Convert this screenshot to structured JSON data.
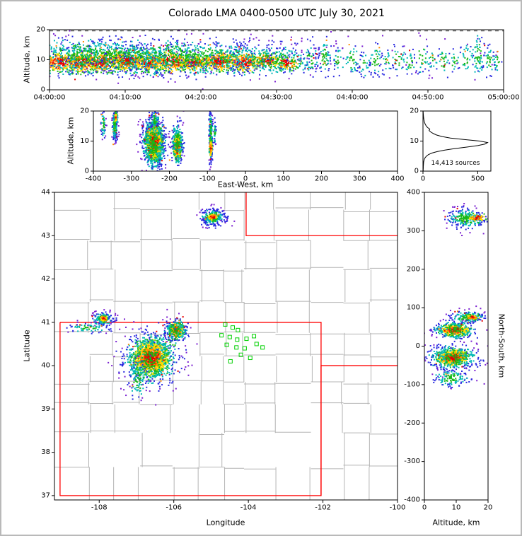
{
  "title": "Colorado LMA 0400-0500 UTC July 30, 2021",
  "labels": {
    "altitude_top": "Altitude, km",
    "altitude_ew": "Altitude, km",
    "east_west": "East-West, km",
    "latitude": "Latitude",
    "longitude": "Longitude",
    "north_south": "North-South, km",
    "altitude_ns": "Altitude, km",
    "sources": "14,413 sources"
  },
  "colors": {
    "hot_palette": [
      "#e60000",
      "#ff8c00",
      "#ffe000",
      "#22bb22",
      "#00b8b8",
      "#2828e0",
      "#7a1fd1"
    ],
    "cool_palette": [
      "#17b817",
      "#00b8b8",
      "#2828e0",
      "#7a1fd1"
    ],
    "county_line": "#b4b4b4",
    "state_border": "#ff0000",
    "station_marker": "#00d000",
    "curve": "#000000",
    "axis": "#000000"
  },
  "chart_data": [
    {
      "id": "time_height",
      "type": "scatter",
      "xlabel": "",
      "ylabel": "Altitude, km",
      "xlim": [
        0,
        60
      ],
      "ylim": [
        0,
        20
      ],
      "xticks": [
        {
          "v": 0,
          "label": "04:00:00"
        },
        {
          "v": 10,
          "label": "04:10:00"
        },
        {
          "v": 20,
          "label": "04:20:00"
        },
        {
          "v": 30,
          "label": "04:30:00"
        },
        {
          "v": 40,
          "label": "04:40:00"
        },
        {
          "v": 50,
          "label": "04:50:00"
        },
        {
          "v": 60,
          "label": "05:00:00"
        }
      ],
      "yticks": [
        0,
        10,
        20
      ],
      "dashed_reference_altitude_km": 19.6,
      "clusters": [
        [
          1.5,
          9.2,
          1.4,
          1.7,
          280,
          "hot"
        ],
        [
          4.2,
          9.0,
          1.2,
          1.8,
          300,
          "hot"
        ],
        [
          7.0,
          9.3,
          1.5,
          1.9,
          340,
          "hot"
        ],
        [
          10.5,
          9.6,
          1.4,
          1.9,
          320,
          "hot"
        ],
        [
          13.2,
          9.0,
          1.2,
          1.6,
          260,
          "hot"
        ],
        [
          16.2,
          9.4,
          1.5,
          1.8,
          300,
          "hot"
        ],
        [
          19.0,
          9.0,
          1.1,
          1.5,
          220,
          "hot"
        ],
        [
          22.4,
          9.5,
          1.4,
          1.8,
          300,
          "hot"
        ],
        [
          25.8,
          9.2,
          1.3,
          1.7,
          270,
          "hot"
        ],
        [
          28.8,
          9.6,
          1.0,
          1.4,
          160,
          "hot"
        ],
        [
          31.3,
          9.0,
          0.9,
          1.3,
          120,
          "hot"
        ],
        [
          7,
          10.5,
          6.0,
          3.0,
          650,
          "cool"
        ],
        [
          19,
          10.5,
          6.0,
          3.0,
          600,
          "cool"
        ],
        [
          29,
          10,
          3.5,
          2.6,
          260,
          "cool"
        ],
        [
          14,
          12.5,
          10,
          2.8,
          280,
          "cool"
        ],
        [
          5,
          13.5,
          4,
          2.2,
          120,
          "cool"
        ],
        [
          34.5,
          10,
          0.5,
          3.0,
          45,
          "cool"
        ],
        [
          36.3,
          10.5,
          0.5,
          3.5,
          60,
          "cool"
        ],
        [
          38.2,
          9.5,
          0.4,
          2.5,
          30,
          "cool"
        ],
        [
          40.0,
          10,
          0.5,
          3,
          42,
          "cool"
        ],
        [
          41.6,
          9,
          0.4,
          2.5,
          28,
          "cool"
        ],
        [
          43.1,
          10,
          0.5,
          3,
          48,
          "cool"
        ],
        [
          44.6,
          9.5,
          0.4,
          2,
          22,
          "cool"
        ],
        [
          46.1,
          10,
          0.5,
          3,
          38,
          "cool"
        ],
        [
          47.6,
          9.0,
          0.4,
          2.2,
          26,
          "cool"
        ],
        [
          49.2,
          10.5,
          0.5,
          3,
          34,
          "cool"
        ],
        [
          50.6,
          9.5,
          0.4,
          2,
          22,
          "cool"
        ],
        [
          52.1,
          10,
          0.5,
          2.6,
          30,
          "cool"
        ],
        [
          53.6,
          9.5,
          0.4,
          2,
          18,
          "cool"
        ],
        [
          55.1,
          10.5,
          0.5,
          3,
          30,
          "cool"
        ],
        [
          56.6,
          11.5,
          0.5,
          3.8,
          70,
          "cool"
        ],
        [
          58.1,
          10,
          0.4,
          2.6,
          36,
          "cool"
        ],
        [
          59.2,
          9.5,
          0.3,
          2,
          20,
          "cool"
        ]
      ]
    },
    {
      "id": "ew_height",
      "type": "scatter",
      "xlabel": "East-West, km",
      "ylabel": "Altitude, km",
      "xlim": [
        -400,
        400
      ],
      "ylim": [
        0,
        20
      ],
      "xticks": [
        -400,
        -300,
        -200,
        -100,
        0,
        100,
        200,
        300,
        400
      ],
      "yticks": [
        0,
        10,
        20
      ],
      "clusters": [
        [
          -374,
          15.5,
          3,
          2.2,
          55,
          "cool"
        ],
        [
          -343,
          15.5,
          3.5,
          2.8,
          150,
          "cool"
        ],
        [
          -341,
          17.8,
          2,
          0.9,
          45,
          "hot"
        ],
        [
          -240,
          9.5,
          11,
          3.1,
          1500,
          "hot"
        ],
        [
          -240,
          9.2,
          16,
          5.0,
          430,
          "cool"
        ],
        [
          -238,
          17.0,
          6,
          1.6,
          70,
          "cool"
        ],
        [
          -179,
          8.0,
          5.5,
          2.2,
          430,
          "hot"
        ],
        [
          -179,
          9.5,
          8,
          3.8,
          150,
          "cool"
        ],
        [
          -91,
          12,
          2.4,
          4.8,
          210,
          "cool"
        ],
        [
          -91,
          7.6,
          2.0,
          1.5,
          90,
          "hot"
        ],
        [
          -80,
          13,
          1.5,
          2.0,
          30,
          "cool"
        ]
      ]
    },
    {
      "id": "alt_histogram",
      "type": "line",
      "annotation": "14,413 sources",
      "xlim": [
        0,
        620
      ],
      "ylim": [
        0,
        20
      ],
      "xticks": [
        0,
        500
      ],
      "yticks": [
        0,
        10,
        20
      ],
      "profile_alt_count": [
        [
          0,
          2
        ],
        [
          0.5,
          2
        ],
        [
          1,
          3
        ],
        [
          1.5,
          3
        ],
        [
          2,
          4
        ],
        [
          2.5,
          5
        ],
        [
          3,
          6
        ],
        [
          3.5,
          9
        ],
        [
          4,
          13
        ],
        [
          4.5,
          20
        ],
        [
          5,
          32
        ],
        [
          5.5,
          50
        ],
        [
          6,
          80
        ],
        [
          6.5,
          130
        ],
        [
          7,
          200
        ],
        [
          7.5,
          290
        ],
        [
          8,
          400
        ],
        [
          8.5,
          500
        ],
        [
          9,
          565
        ],
        [
          9.5,
          590
        ],
        [
          10,
          520
        ],
        [
          10.5,
          380
        ],
        [
          11,
          250
        ],
        [
          11.5,
          175
        ],
        [
          12,
          125
        ],
        [
          12.5,
          95
        ],
        [
          13,
          72
        ],
        [
          13.5,
          56
        ],
        [
          14,
          62
        ],
        [
          14.5,
          42
        ],
        [
          15,
          30
        ],
        [
          15.5,
          22
        ],
        [
          16,
          16
        ],
        [
          16.5,
          12
        ],
        [
          17,
          9
        ],
        [
          17.5,
          7
        ],
        [
          18,
          5
        ],
        [
          18.5,
          4
        ],
        [
          19,
          3
        ],
        [
          19.5,
          2
        ],
        [
          20,
          1
        ]
      ]
    },
    {
      "id": "map",
      "type": "scatter",
      "xlabel": "Longitude",
      "ylabel": "Latitude",
      "xlim": [
        -109.2,
        -100
      ],
      "ylim": [
        36.9,
        44
      ],
      "xticks": [
        -108,
        -106,
        -104,
        -102,
        -100
      ],
      "yticks": [
        37,
        38,
        39,
        40,
        41,
        42,
        43,
        44
      ],
      "state_borders": [
        [
          [
            -109.05,
            41
          ],
          [
            -102.05,
            41
          ],
          [
            -102.05,
            37
          ],
          [
            -109.05,
            37
          ],
          [
            -109.05,
            41
          ]
        ],
        [
          [
            -104.06,
            44
          ],
          [
            -104.06,
            43
          ],
          [
            -100,
            43
          ]
        ],
        [
          [
            -100,
            40
          ],
          [
            -102.05,
            40
          ],
          [
            -102.05,
            37
          ]
        ]
      ],
      "green_squares": [
        [
          -104.62,
          40.95
        ],
        [
          -104.42,
          40.88
        ],
        [
          -104.28,
          40.82
        ],
        [
          -104.72,
          40.7
        ],
        [
          -104.5,
          40.66
        ],
        [
          -104.3,
          40.6
        ],
        [
          -104.05,
          40.62
        ],
        [
          -103.85,
          40.68
        ],
        [
          -104.58,
          40.48
        ],
        [
          -104.32,
          40.42
        ],
        [
          -104.1,
          40.4
        ],
        [
          -103.78,
          40.5
        ],
        [
          -103.62,
          40.42
        ],
        [
          -104.2,
          40.25
        ],
        [
          -103.95,
          40.18
        ],
        [
          -104.48,
          40.1
        ]
      ],
      "clusters": [
        [
          -104.95,
          43.42,
          0.17,
          0.1,
          240,
          "cool"
        ],
        [
          -104.95,
          43.43,
          0.07,
          0.05,
          90,
          "hot"
        ],
        [
          -107.88,
          41.08,
          0.15,
          0.08,
          150,
          "cool"
        ],
        [
          -107.88,
          41.08,
          0.055,
          0.04,
          60,
          "hot"
        ],
        [
          -108.25,
          40.87,
          0.3,
          0.06,
          75,
          "cool"
        ],
        [
          -106.62,
          40.18,
          0.25,
          0.21,
          1300,
          "hot"
        ],
        [
          -106.6,
          40.15,
          0.4,
          0.34,
          420,
          "cool"
        ],
        [
          -105.93,
          40.82,
          0.1,
          0.09,
          280,
          "hot"
        ],
        [
          -105.93,
          40.82,
          0.18,
          0.14,
          130,
          "cool"
        ],
        [
          -106.95,
          39.7,
          0.13,
          0.22,
          90,
          "cool"
        ],
        [
          -106.1,
          40.55,
          0.3,
          0.2,
          40,
          "cool"
        ]
      ]
    },
    {
      "id": "ns_height",
      "type": "scatter",
      "xlabel": "Altitude, km",
      "ylabel": "North-South, km",
      "xlim": [
        0,
        20
      ],
      "ylim": [
        -400,
        400
      ],
      "xticks": [
        0,
        10,
        20
      ],
      "yticks": [
        -400,
        -300,
        -200,
        -100,
        0,
        100,
        200,
        300,
        400
      ],
      "clusters": [
        [
          13.0,
          332,
          3.0,
          13,
          260,
          "cool"
        ],
        [
          16.5,
          334,
          1.4,
          6,
          70,
          "hot"
        ],
        [
          13.5,
          75,
          2.8,
          9,
          160,
          "cool"
        ],
        [
          15.0,
          75,
          1.3,
          4,
          60,
          "hot"
        ],
        [
          9.5,
          41,
          2.4,
          8,
          380,
          "hot"
        ],
        [
          9.5,
          41,
          3.5,
          13,
          150,
          "cool"
        ],
        [
          9.0,
          -30,
          2.7,
          11,
          650,
          "hot"
        ],
        [
          9.0,
          -30,
          4.2,
          18,
          260,
          "cool"
        ],
        [
          8.5,
          -83,
          3.0,
          12,
          130,
          "cool"
        ]
      ]
    }
  ]
}
